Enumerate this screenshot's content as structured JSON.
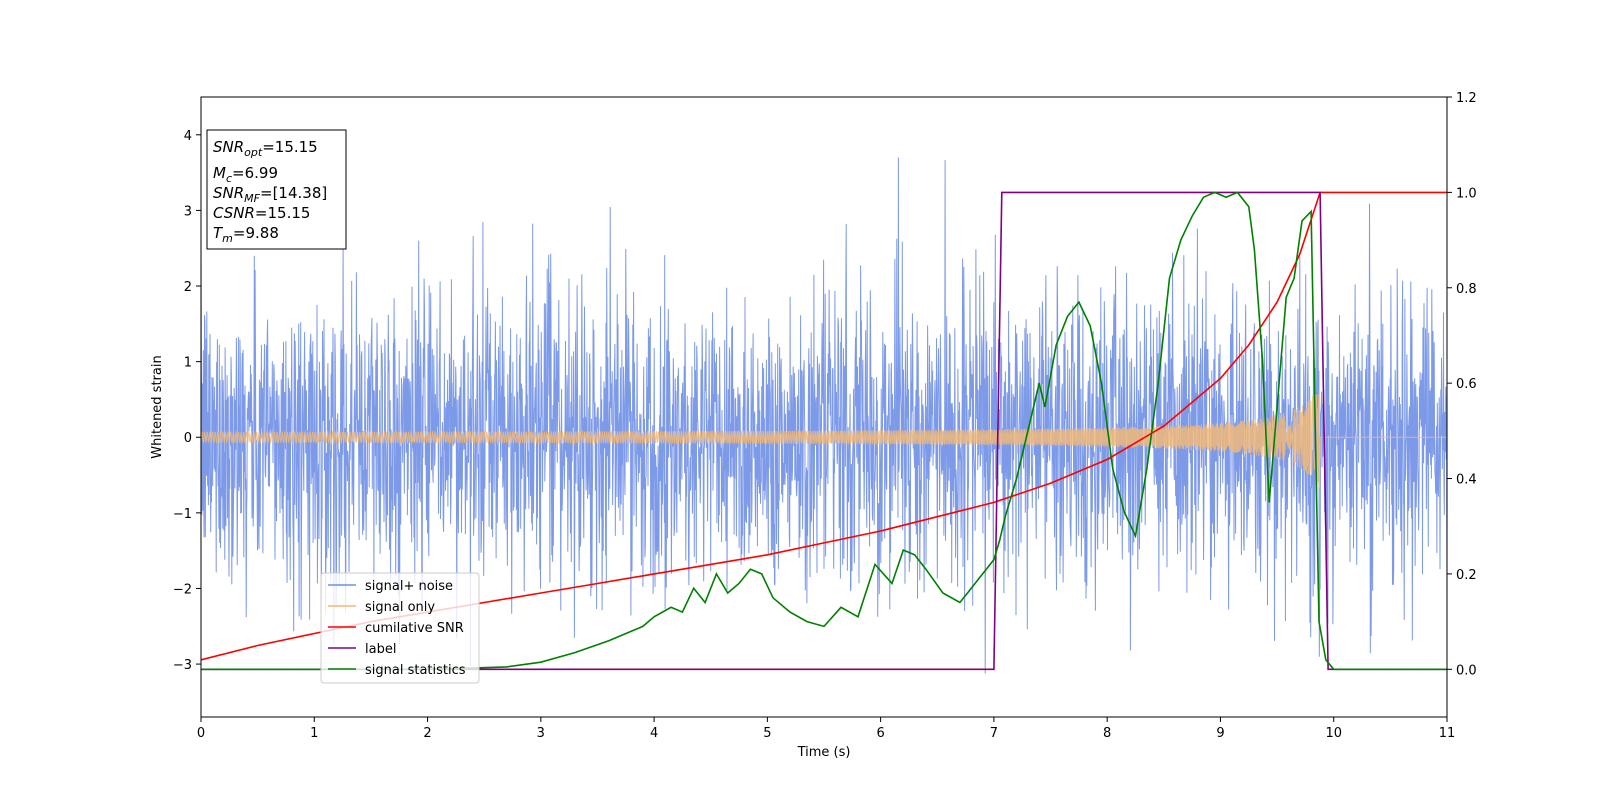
{
  "chart_data": {
    "type": "line",
    "xlabel": "Time (s)",
    "ylabel": "Whitened strain",
    "xlim": [
      0,
      11
    ],
    "ylim_left": [
      -3.7,
      4.5
    ],
    "ylim_right": [
      -0.1,
      1.2
    ],
    "x_ticks": [
      "0",
      "1",
      "2",
      "3",
      "4",
      "5",
      "6",
      "7",
      "8",
      "9",
      "10",
      "11"
    ],
    "y_left_ticks": [
      "−3",
      "−2",
      "−1",
      "0",
      "1",
      "2",
      "3",
      "4"
    ],
    "y_right_ticks": [
      "0.0",
      "0.2",
      "0.4",
      "0.6",
      "0.8",
      "1.0",
      "1.2"
    ],
    "legend_position": "lower-left",
    "info_box": {
      "snr_opt": {
        "base": "SNR",
        "sub": "opt",
        "value": "=15.15"
      },
      "mc": {
        "base": "M",
        "sub": "c",
        "value": "=6.99"
      },
      "snr_mf": {
        "base": "SNR",
        "sub": "MF",
        "value": "=[14.38]"
      },
      "csnr": {
        "base": "CSNR",
        "sub": "",
        "value": "=15.15"
      },
      "tm": {
        "base": "T",
        "sub": "m",
        "value": "=9.88"
      }
    },
    "series": [
      {
        "name": "signal+ noise",
        "axis": "left",
        "color": "#6f8fe6",
        "kind": "noise",
        "noise_std": 0.95,
        "x_range": [
          0,
          11
        ]
      },
      {
        "name": "signal only",
        "axis": "left",
        "color": "#f0b97a",
        "kind": "chirp",
        "chirp_start_amp": 0.05,
        "chirp_end_amp": 0.7,
        "t_merge": 9.88,
        "x_range": [
          0,
          11
        ]
      },
      {
        "name": "cumilative SNR",
        "axis": "right",
        "color": "#ff0000",
        "x": [
          0,
          0.5,
          1,
          1.5,
          2,
          2.5,
          3,
          3.5,
          4,
          4.5,
          5,
          5.5,
          6,
          6.5,
          7,
          7.5,
          8,
          8.5,
          9,
          9.25,
          9.5,
          9.7,
          9.88,
          10,
          11
        ],
        "values": [
          0.02,
          0.05,
          0.075,
          0.1,
          0.12,
          0.14,
          0.16,
          0.18,
          0.2,
          0.22,
          0.24,
          0.265,
          0.29,
          0.32,
          0.35,
          0.39,
          0.44,
          0.51,
          0.61,
          0.68,
          0.77,
          0.87,
          1.0,
          1.0,
          1.0
        ]
      },
      {
        "name": "label",
        "axis": "right",
        "color": "#800080",
        "x": [
          0,
          7.0,
          7.07,
          9.88,
          9.95,
          11
        ],
        "values": [
          0,
          0,
          1,
          1,
          0,
          0
        ]
      },
      {
        "name": "signal statistics",
        "axis": "right",
        "color": "#008000",
        "x": [
          0,
          2.0,
          2.7,
          3.0,
          3.3,
          3.6,
          3.9,
          4.0,
          4.15,
          4.25,
          4.35,
          4.45,
          4.55,
          4.65,
          4.75,
          4.85,
          4.95,
          5.05,
          5.2,
          5.35,
          5.5,
          5.65,
          5.8,
          5.95,
          6.1,
          6.2,
          6.3,
          6.4,
          6.55,
          6.7,
          6.8,
          6.9,
          7.0,
          7.05,
          7.1,
          7.2,
          7.3,
          7.4,
          7.45,
          7.55,
          7.65,
          7.75,
          7.85,
          7.95,
          8.05,
          8.15,
          8.25,
          8.35,
          8.45,
          8.55,
          8.65,
          8.75,
          8.85,
          8.95,
          9.05,
          9.15,
          9.25,
          9.3,
          9.37,
          9.43,
          9.5,
          9.58,
          9.65,
          9.72,
          9.8,
          9.87,
          9.93,
          10.0,
          11.0
        ],
        "values": [
          0,
          0,
          0.005,
          0.015,
          0.035,
          0.06,
          0.09,
          0.11,
          0.13,
          0.12,
          0.17,
          0.14,
          0.2,
          0.16,
          0.18,
          0.21,
          0.2,
          0.15,
          0.12,
          0.1,
          0.09,
          0.13,
          0.11,
          0.22,
          0.18,
          0.25,
          0.24,
          0.21,
          0.16,
          0.14,
          0.17,
          0.2,
          0.23,
          0.27,
          0.32,
          0.4,
          0.5,
          0.6,
          0.55,
          0.68,
          0.74,
          0.77,
          0.72,
          0.6,
          0.42,
          0.33,
          0.28,
          0.42,
          0.6,
          0.82,
          0.9,
          0.95,
          0.99,
          1.0,
          0.99,
          1.0,
          0.97,
          0.88,
          0.65,
          0.35,
          0.55,
          0.78,
          0.82,
          0.94,
          0.96,
          0.1,
          0.02,
          0.0,
          0.0
        ]
      }
    ]
  }
}
